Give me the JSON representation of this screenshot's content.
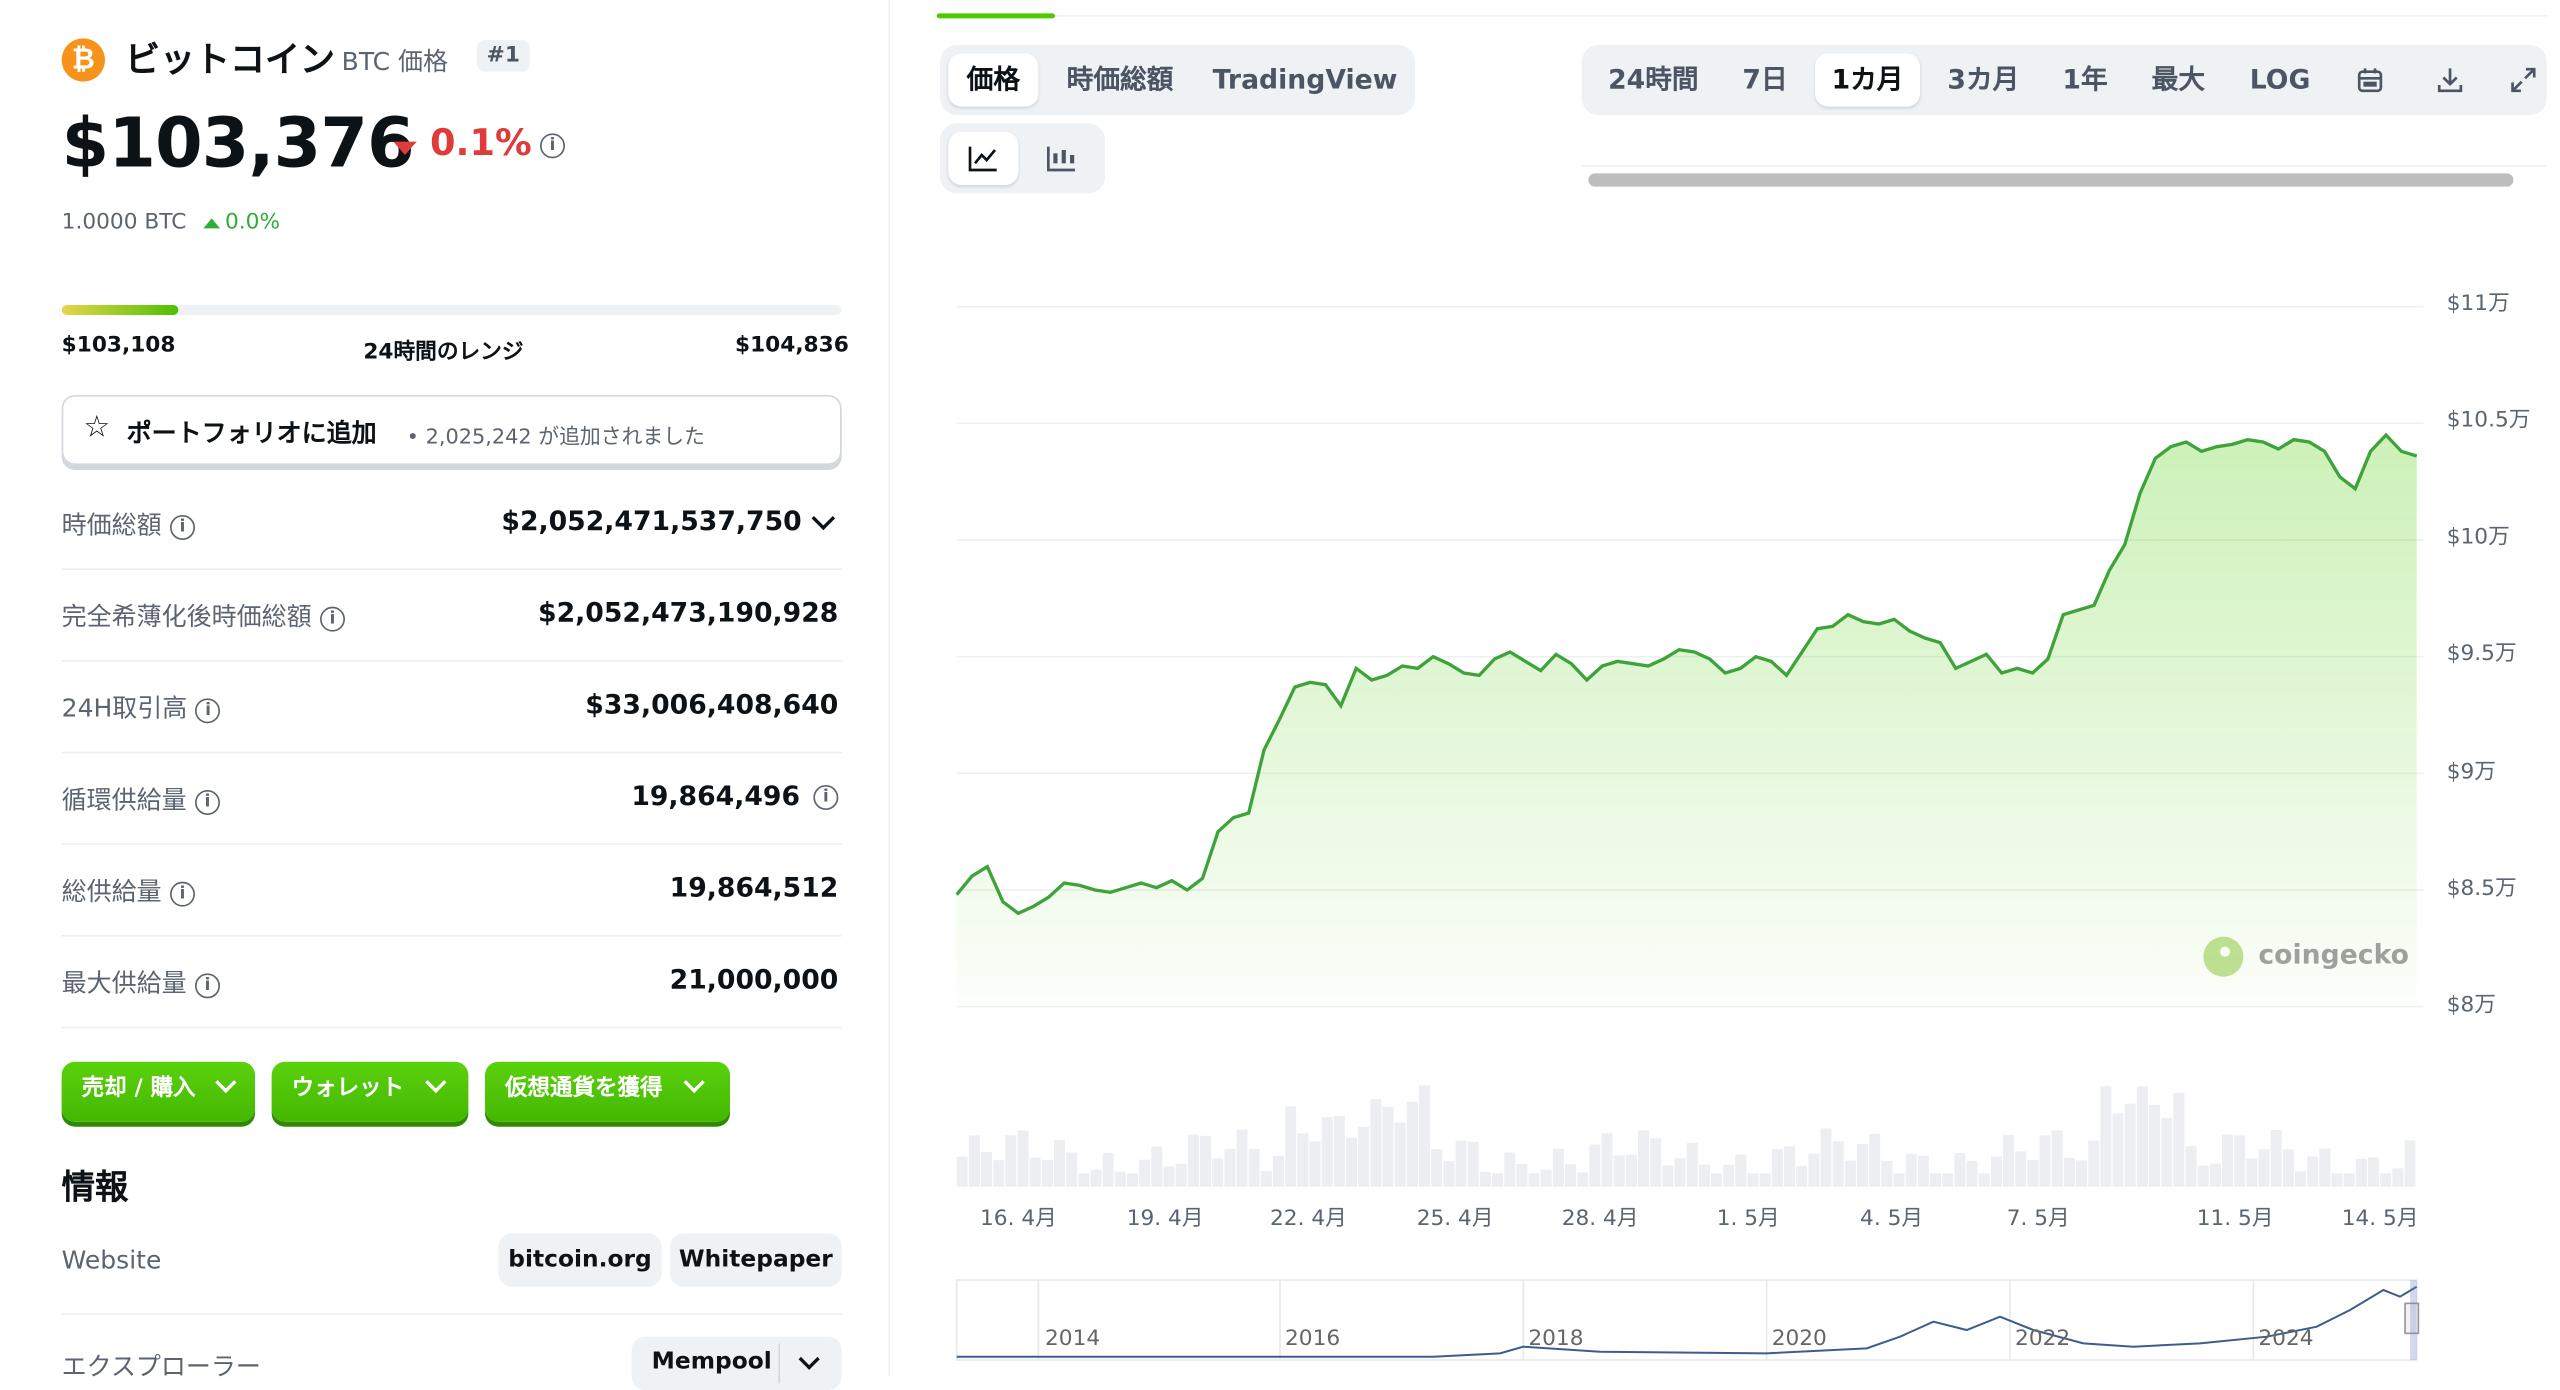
{
  "coin": {
    "name": "ビットコイン",
    "symbol_label": "BTC 価格",
    "rank": "#1",
    "price": "$103,376",
    "change_24h": "0.1%",
    "btc_price": "1.0000 BTC",
    "btc_change": "0.0%",
    "colors": {
      "down": "#e03b3b",
      "up": "#2eae34",
      "brand": "#f7931a"
    }
  },
  "range": {
    "low": "$103,108",
    "label": "24時間のレンジ",
    "high": "$104,836",
    "fill_fraction": 0.15
  },
  "portfolio": {
    "label": "ポートフォリオに追加",
    "count_text": "• 2,025,242 が追加されました"
  },
  "stats": [
    {
      "label": "時価総額",
      "value": "$2,052,471,537,750"
    },
    {
      "label": "完全希薄化後時価総額",
      "value": "$2,052,473,190,928"
    },
    {
      "label": "24H取引高",
      "value": "$33,006,408,640"
    },
    {
      "label": "循環供給量",
      "value": "19,864,496"
    },
    {
      "label": "総供給量",
      "value": "19,864,512"
    },
    {
      "label": "最大供給量",
      "value": "21,000,000"
    }
  ],
  "actions": {
    "buy_sell": "売却 / 購入",
    "wallet": "ウォレット",
    "earn": "仮想通貨を獲得"
  },
  "info": {
    "heading": "情報",
    "website_label": "Website",
    "website_links": [
      "bitcoin.org",
      "Whitepaper"
    ],
    "explorer_label": "エクスプローラー",
    "explorer_value": "Mempool"
  },
  "chart_tabs": {
    "price": "価格",
    "market_cap": "時価総額",
    "tradingview": "TradingView"
  },
  "ranges": [
    "24時間",
    "7日",
    "1カ月",
    "3カ月",
    "1年",
    "最大",
    "LOG"
  ],
  "active_range": "1カ月",
  "icons": [
    "line-chart-icon",
    "candlestick-icon",
    "calendar-icon",
    "download-icon",
    "expand-icon",
    "coingecko-logo-icon"
  ],
  "watermark": "coingecko",
  "chart_data": {
    "type": "line",
    "y_tick_labels": [
      "$11万",
      "$10.5万",
      "$10万",
      "$9.5万",
      "$9万",
      "$8.5万",
      "$8万"
    ],
    "ylim": [
      80000,
      110000
    ],
    "x_tick_labels": [
      "16. 4月",
      "19. 4月",
      "22. 4月",
      "25. 4月",
      "28. 4月",
      "1. 5月",
      "4. 5月",
      "7. 5月",
      "11. 5月",
      "14. 5月"
    ],
    "series": [
      {
        "values": [
          84800,
          85600,
          86000,
          84500,
          84000,
          84300,
          84700,
          85300,
          85200,
          85000,
          84900,
          85100,
          85300,
          85100,
          85400,
          85000,
          85500,
          87500,
          88100,
          88300,
          91000,
          92300,
          93700,
          93900,
          93800,
          92900,
          94500,
          94000,
          94200,
          94600,
          94500,
          95000,
          94700,
          94300,
          94200,
          94900,
          95200,
          94800,
          94400,
          95100,
          94700,
          94000,
          94600,
          94800,
          94700,
          94600,
          94900,
          95300,
          95200,
          94900,
          94300,
          94500,
          95000,
          94800,
          94200,
          95200,
          96200,
          96300,
          96800,
          96500,
          96400,
          96600,
          96100,
          95800,
          95600,
          94500,
          94800,
          95100,
          94300,
          94500,
          94300,
          94900,
          96800,
          97000,
          97200,
          98700,
          99800,
          102000,
          103500,
          104000,
          104200,
          103800,
          104000,
          104100,
          104300,
          104200,
          103900,
          104300,
          104200,
          103800,
          102700,
          102200,
          103800,
          104500,
          103800,
          103600
        ]
      }
    ],
    "history_tick_labels": [
      "2014",
      "2016",
      "2018",
      "2020",
      "2022",
      "2024"
    ]
  }
}
